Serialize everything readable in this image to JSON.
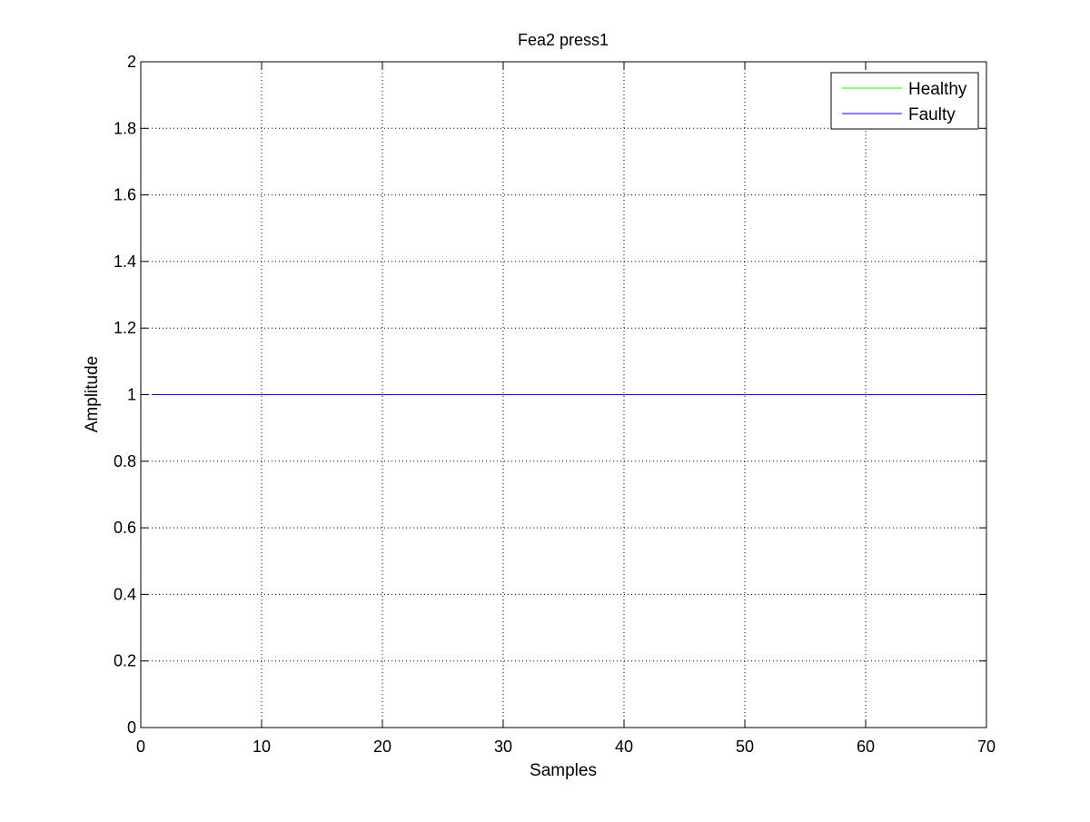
{
  "chart_data": {
    "type": "line",
    "title": "Fea2  press1",
    "xlabel": "Samples",
    "ylabel": "Amplitude",
    "xlim": [
      0,
      70
    ],
    "ylim": [
      0,
      2
    ],
    "xticks": [
      0,
      10,
      20,
      30,
      40,
      50,
      60,
      70
    ],
    "yticks": [
      0,
      0.2,
      0.4,
      0.6,
      0.8,
      1,
      1.2,
      1.4,
      1.6,
      1.8,
      2
    ],
    "xtick_labels": [
      "0",
      "10",
      "20",
      "30",
      "40",
      "50",
      "60",
      "70"
    ],
    "ytick_labels": [
      "0",
      "0.2",
      "0.4",
      "0.6",
      "0.8",
      "1",
      "1.2",
      "1.4",
      "1.6",
      "1.8",
      "2"
    ],
    "grid": true,
    "legend_position": "top-right",
    "series": [
      {
        "name": "Healthy",
        "color": "#00ff00",
        "x": [
          1,
          70
        ],
        "y": [
          1,
          1
        ]
      },
      {
        "name": "Faulty",
        "color": "#0000ff",
        "x": [
          1,
          70
        ],
        "y": [
          1,
          1
        ]
      }
    ]
  }
}
